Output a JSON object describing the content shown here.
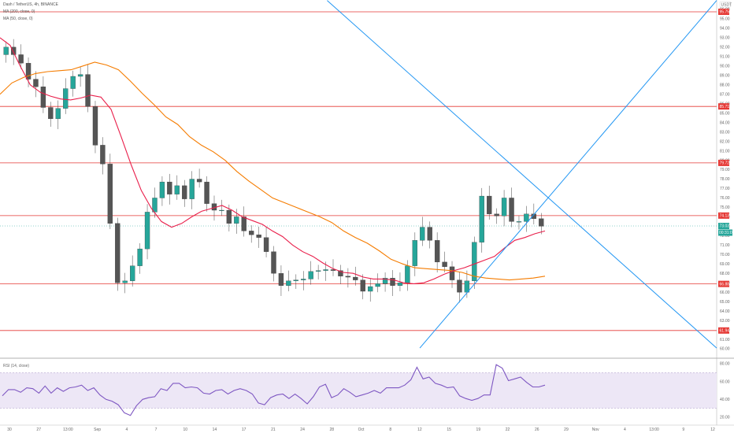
{
  "header": {
    "symbol_line": "Dash / TetherUS, 4h, BINANCE",
    "ma_line": "MA (200, close, 0)",
    "ma2_line": "MA (50, close, 0)"
  },
  "rsi_label": "RSI (14, close)",
  "currency": "USDT",
  "colors": {
    "bull": "#26a69a",
    "bear": "#ef5350",
    "candle_body": "#555555",
    "level_line": "#e53935",
    "trendline": "#2196f3",
    "ma_fast": "#e91e4a",
    "ma_slow": "#f57c00",
    "rsi_line": "#7e57c2",
    "rsi_band": "#ede7f6"
  },
  "chart_data": [
    {
      "type": "candlestick",
      "title": "",
      "ylim": [
        59.0,
        97.0
      ],
      "y_ticks": [
        60,
        61,
        62,
        63,
        64,
        65,
        66,
        67,
        68,
        69,
        70,
        71,
        72,
        73,
        74,
        75,
        76,
        77,
        78,
        79,
        80,
        81,
        82,
        83,
        84,
        85,
        86,
        87,
        88,
        89,
        90,
        91,
        92,
        93,
        94,
        95,
        96
      ],
      "x_labels": [
        "30",
        "27",
        "13:00",
        "Sep",
        "4",
        "7",
        "10",
        "14",
        "17",
        "21",
        "24",
        "28",
        "Oct",
        "8",
        "12",
        "15",
        "19",
        "22",
        "26",
        "29",
        "Nov",
        "4",
        "13:00",
        "9",
        "12"
      ],
      "price_levels": [
        95.75,
        85.71,
        79.72,
        74.13,
        66.88,
        61.94
      ],
      "current_price": 73.03,
      "countdown": "00:31:07",
      "close_series": [
        92.0,
        91.2,
        90.3,
        88.6,
        87.8,
        85.6,
        84.4,
        85.5,
        87.6,
        88.9,
        89.1,
        85.7,
        81.6,
        79.6,
        73.3,
        67.0,
        67.2,
        68.8,
        70.6,
        74.5,
        76.0,
        77.7,
        76.4,
        77.3,
        75.9,
        78.0,
        77.7,
        75.4,
        74.7,
        74.7,
        73.3,
        74.0,
        72.5,
        72.1,
        71.8,
        70.3,
        68.0,
        66.7,
        67.2,
        67.3,
        67.4,
        68.2,
        68.3,
        68.4,
        68.3,
        67.7,
        67.6,
        67.3,
        66.1,
        66.6,
        66.9,
        67.5,
        66.7,
        67.0,
        68.8,
        71.5,
        72.9,
        71.5,
        69.2,
        68.7,
        67.3,
        66.0,
        67.2,
        71.3,
        76.2,
        74.3,
        74.1,
        76.0,
        73.5,
        73.5,
        74.3,
        73.8,
        73.0
      ],
      "ma_fast": [
        93.0,
        92.2,
        90.0,
        88.0,
        87.2,
        86.8,
        86.5,
        86.4,
        86.6,
        86.9,
        86.7,
        85.4,
        82.5,
        79.5,
        76.8,
        74.9,
        73.5,
        72.9,
        73.3,
        74.0,
        74.6,
        74.9,
        75.2,
        74.7,
        74.0,
        73.6,
        73.2,
        72.5,
        71.9,
        71.0,
        70.3,
        69.8,
        69.1,
        68.5,
        68.1,
        68.0,
        67.6,
        67.4,
        67.4,
        67.3,
        67.0,
        66.9,
        67.0,
        67.4,
        67.9,
        68.3,
        68.6,
        69.0,
        69.4,
        69.8,
        70.7,
        71.5,
        71.8,
        72.2,
        72.5
      ],
      "ma_slow": [
        87.0,
        88.2,
        88.8,
        89.2,
        89.4,
        89.5,
        89.6,
        90.0,
        90.4,
        90.1,
        89.6,
        88.4,
        87.1,
        85.9,
        84.6,
        83.8,
        82.5,
        81.6,
        80.9,
        80.0,
        78.8,
        77.8,
        76.9,
        76.0,
        75.5,
        75.0,
        74.5,
        74.0,
        73.4,
        72.5,
        71.8,
        71.2,
        70.4,
        69.5,
        69.0,
        68.6,
        68.5,
        68.4,
        68.3,
        68.1,
        67.7,
        67.5,
        67.4,
        67.3,
        67.4,
        67.5,
        67.7
      ],
      "trendlines": [
        {
          "name": "descending",
          "points": [
            [
              0.4565,
              96.95
            ],
            [
              1.0,
              60.08
            ]
          ]
        },
        {
          "name": "ascending",
          "points": [
            [
              0.5858,
              60.08
            ],
            [
              1.0,
              96.95
            ]
          ]
        }
      ]
    },
    {
      "type": "line",
      "title": "",
      "ylim": [
        20,
        80
      ],
      "y_ticks": [
        20,
        40,
        60,
        80
      ],
      "bands": [
        30,
        70
      ],
      "values": [
        44,
        51,
        51,
        48,
        53,
        52,
        47,
        55,
        47,
        53,
        49,
        53,
        54,
        56,
        50,
        53,
        45,
        40,
        38,
        34,
        25,
        22,
        33,
        40,
        42,
        43,
        52,
        50,
        58,
        58,
        53,
        54,
        53,
        47,
        46,
        50,
        51,
        46,
        50,
        52,
        50,
        46,
        36,
        34,
        42,
        45,
        46,
        41,
        46,
        41,
        35,
        43,
        54,
        57,
        42,
        45,
        52,
        48,
        43,
        45,
        47,
        50,
        47,
        53,
        53,
        53,
        56,
        62,
        76,
        63,
        65,
        58,
        56,
        53,
        54,
        44,
        41,
        39,
        41,
        45,
        45,
        79,
        75,
        61,
        63,
        65,
        59,
        54,
        54,
        56
      ]
    }
  ]
}
